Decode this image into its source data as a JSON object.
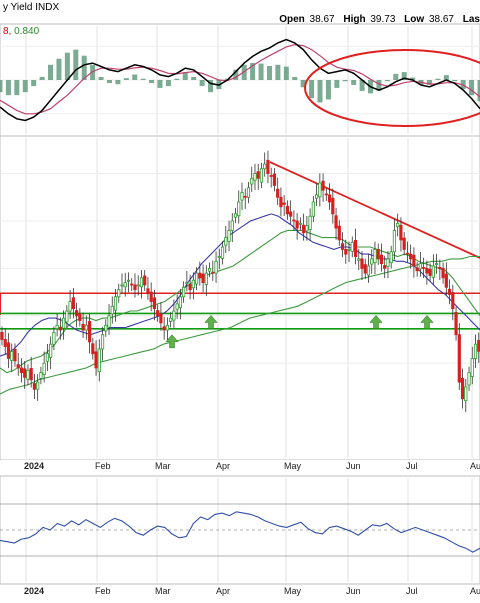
{
  "header": {
    "title": "y Yield INDX",
    "open_label": "Open",
    "open_value": "38.67",
    "high_label": "High",
    "high_value": "39.73",
    "low_label": "Low",
    "low_value": "38.67",
    "last_label": "Las"
  },
  "macd_panel": {
    "label_a": "8,",
    "label_b": "0.840"
  },
  "x_axis": {
    "labels": [
      "2024",
      "Feb",
      "Mar",
      "Apr",
      "May",
      "Jun",
      "Jul",
      "Aug"
    ]
  },
  "colors": {
    "up": "#2a9d2a",
    "down": "#d62020",
    "ma_short": "#3f9a3f",
    "ma_long": "#3a3aa8",
    "resistance": "#e02020",
    "support": "#0f9a0f",
    "arrow": "#5fb04a",
    "macd_line": "#000000",
    "signal_line": "#c04070",
    "histogram": "#4f8f6f",
    "rsi_line": "#3050a8"
  },
  "chart_data": [
    {
      "type": "line",
      "panel": "price",
      "series": [
        {
          "values": [
            41.0,
            40.7,
            40.2,
            40.5,
            40.1,
            39.8,
            39.6,
            39.4,
            39.7,
            39.3,
            38.9,
            39.2,
            39.6,
            40.0,
            40.4,
            40.8,
            41.3,
            41.6,
            41.4,
            41.9,
            42.2,
            42.6,
            42.3,
            42.0,
            41.8,
            41.4,
            41.6,
            40.9,
            40.4,
            39.8,
            40.6,
            41.2,
            41.6,
            42.0,
            42.4,
            42.8,
            43.1,
            43.3,
            43.4,
            43.5,
            43.3,
            43.1,
            43.3,
            43.6,
            43.3,
            43.0,
            42.6,
            42.3,
            42.0,
            41.7,
            41.4,
            41.6,
            41.9,
            42.2,
            42.5,
            42.8,
            43.2,
            43.4,
            43.1,
            43.5,
            43.8,
            43.6,
            43.4,
            43.8,
            44.0,
            43.8,
            44.3,
            44.5,
            44.9,
            45.3,
            45.6,
            46.0,
            46.3,
            46.8,
            47.2,
            47.0,
            47.4,
            47.8,
            48.0,
            47.8,
            48.2,
            48.4,
            48.0,
            47.9,
            47.5,
            47.0,
            46.6,
            46.7,
            46.3,
            46.2,
            46.0,
            45.7,
            45.9,
            45.5,
            45.8,
            46.2,
            46.8,
            47.1,
            47.6,
            47.3,
            47.1,
            46.8,
            46.3,
            45.7,
            45.2,
            44.8,
            44.6,
            44.8,
            45.1,
            44.5,
            44.4,
            44.0,
            43.8,
            44.1,
            44.4,
            44.8,
            44.4,
            44.2,
            44.0,
            44.4,
            44.7,
            45.6,
            45.9,
            45.2,
            44.8,
            44.6,
            44.4,
            44.1,
            43.9,
            44.2,
            44.0,
            43.8,
            43.7,
            44.1,
            44.2,
            44.0,
            43.6,
            43.2,
            42.9,
            42.3,
            41.2,
            39.2,
            38.5,
            39.0,
            39.6,
            40.2,
            40.8,
            40.5,
            40.6
          ]
        },
        {
          "name": "",
          "values": [
            39.8,
            39.6,
            39.7,
            39.9,
            40.1,
            40.2,
            40.3,
            40.5,
            40.8,
            41.2,
            41.6,
            41.8,
            41.9,
            41.9,
            41.8,
            41.9,
            41.9,
            42.0,
            42.1,
            42.2,
            42.2,
            42.3,
            42.4,
            42.5,
            42.6,
            42.8,
            43.0,
            43.2,
            43.4,
            43.6,
            43.7,
            43.8,
            43.9,
            44.0,
            44.1,
            44.3,
            44.5,
            44.7,
            44.9,
            45.1,
            45.3,
            45.5,
            45.6,
            45.6,
            45.6,
            45.5,
            45.4,
            45.3,
            45.3,
            45.3,
            45.2,
            45.0,
            44.9,
            44.9,
            44.9,
            44.8,
            44.7,
            44.6,
            44.5,
            44.6,
            44.5,
            44.3,
            44.2,
            44.1,
            44.0,
            43.9,
            43.6,
            43.2,
            42.8,
            42.4,
            42.0
          ]
        },
        {
          "name": "",
          "values": [
            40.3,
            40.4,
            40.6,
            40.9,
            41.3,
            41.6,
            41.8,
            41.9,
            41.9,
            41.8,
            41.6,
            41.4,
            41.3,
            41.2,
            41.3,
            41.4,
            41.5,
            41.5,
            41.5,
            41.6,
            41.7,
            41.8,
            41.9,
            42.0,
            42.2,
            42.5,
            42.9,
            43.4,
            43.8,
            44.2,
            44.5,
            44.8,
            45.1,
            45.4,
            45.6,
            45.8,
            46.0,
            46.1,
            46.2,
            46.3,
            46.2,
            46.0,
            45.8,
            45.5,
            45.3,
            45.1,
            45.0,
            44.9,
            44.8,
            44.9,
            44.9,
            44.8,
            44.6,
            44.6,
            44.5,
            44.4,
            44.4,
            44.3,
            44.3,
            44.2,
            44.0,
            43.7,
            43.4,
            43.1,
            42.9,
            42.6,
            42.3,
            42.0,
            41.7,
            41.4
          ]
        },
        {
          "name": "",
          "values": [
            38.7,
            38.9,
            39.0,
            39.1,
            39.3,
            39.4,
            39.5,
            39.6,
            39.7,
            39.8,
            40.0,
            40.1,
            40.2,
            40.3,
            40.4,
            40.5,
            40.6,
            40.8,
            40.9,
            41.0,
            41.1,
            41.2,
            41.3,
            41.4,
            41.5,
            41.7,
            41.9,
            42.0,
            42.1,
            42.2,
            42.3,
            42.4,
            42.6,
            42.8,
            43.0,
            43.2,
            43.4,
            43.5,
            43.6,
            43.7,
            43.8,
            43.9,
            44.0,
            44.1,
            44.2,
            44.3,
            44.3,
            44.4,
            44.4,
            44.5,
            44.5
          ]
        }
      ],
      "annotations": {
        "resistance_zone": [
          42.2,
          42.95
        ],
        "support_lines": [
          42.1,
          41.45
        ],
        "trend_start": 48.4,
        "trend_end": 45.2
      }
    },
    {
      "type": "line",
      "panel": "macd",
      "series": [
        {
          "values": [
            -0.8,
            -1.0,
            -1.15,
            -1.2,
            -1.1,
            -0.9,
            -0.6,
            -0.3,
            0.0,
            0.3,
            0.45,
            0.5,
            0.4,
            0.3,
            0.25,
            0.35,
            0.45,
            0.4,
            0.3,
            0.15,
            0.1,
            0.2,
            0.35,
            0.3,
            0.1,
            -0.1,
            -0.15,
            0.0,
            0.25,
            0.5,
            0.7,
            0.85,
            0.95,
            1.1,
            1.2,
            1.1,
            0.9,
            0.6,
            0.35,
            0.2,
            0.25,
            0.3,
            0.2,
            0.0,
            -0.2,
            -0.3,
            -0.2,
            -0.05,
            0.05,
            0.0,
            -0.15,
            -0.2,
            -0.1,
            0.0,
            -0.1,
            -0.3,
            -0.55,
            -0.85
          ]
        },
        {
          "values": [
            -0.6,
            -0.75,
            -0.9,
            -1.0,
            -1.0,
            -0.95,
            -0.85,
            -0.65,
            -0.45,
            -0.2,
            0.05,
            0.25,
            0.35,
            0.35,
            0.32,
            0.32,
            0.36,
            0.38,
            0.35,
            0.28,
            0.2,
            0.18,
            0.22,
            0.25,
            0.2,
            0.1,
            0.0,
            -0.02,
            0.08,
            0.25,
            0.42,
            0.58,
            0.72,
            0.85,
            0.98,
            1.05,
            1.02,
            0.9,
            0.72,
            0.52,
            0.38,
            0.32,
            0.28,
            0.18,
            0.02,
            -0.12,
            -0.18,
            -0.15,
            -0.08,
            -0.04,
            -0.07,
            -0.12,
            -0.12,
            -0.08,
            -0.08,
            -0.15,
            -0.3,
            -0.5
          ]
        }
      ]
    },
    {
      "type": "line",
      "panel": "rsi",
      "series": [
        {
          "values": [
            42,
            41,
            40,
            43,
            44,
            47,
            52,
            50,
            55,
            53,
            57,
            54,
            58,
            55,
            52,
            56,
            59,
            57,
            53,
            48,
            46,
            50,
            53,
            52,
            47,
            44,
            45,
            55,
            60,
            58,
            62,
            63,
            61,
            64,
            63,
            62,
            60,
            57,
            55,
            53,
            52,
            54,
            56,
            51,
            48,
            47,
            52,
            53,
            51,
            49,
            46,
            50,
            54,
            53,
            55,
            51,
            48,
            50,
            52,
            50,
            48,
            46,
            44,
            41,
            38,
            36,
            33,
            36
          ]
        }
      ],
      "reference_lines": [
        70,
        50,
        30
      ]
    }
  ]
}
